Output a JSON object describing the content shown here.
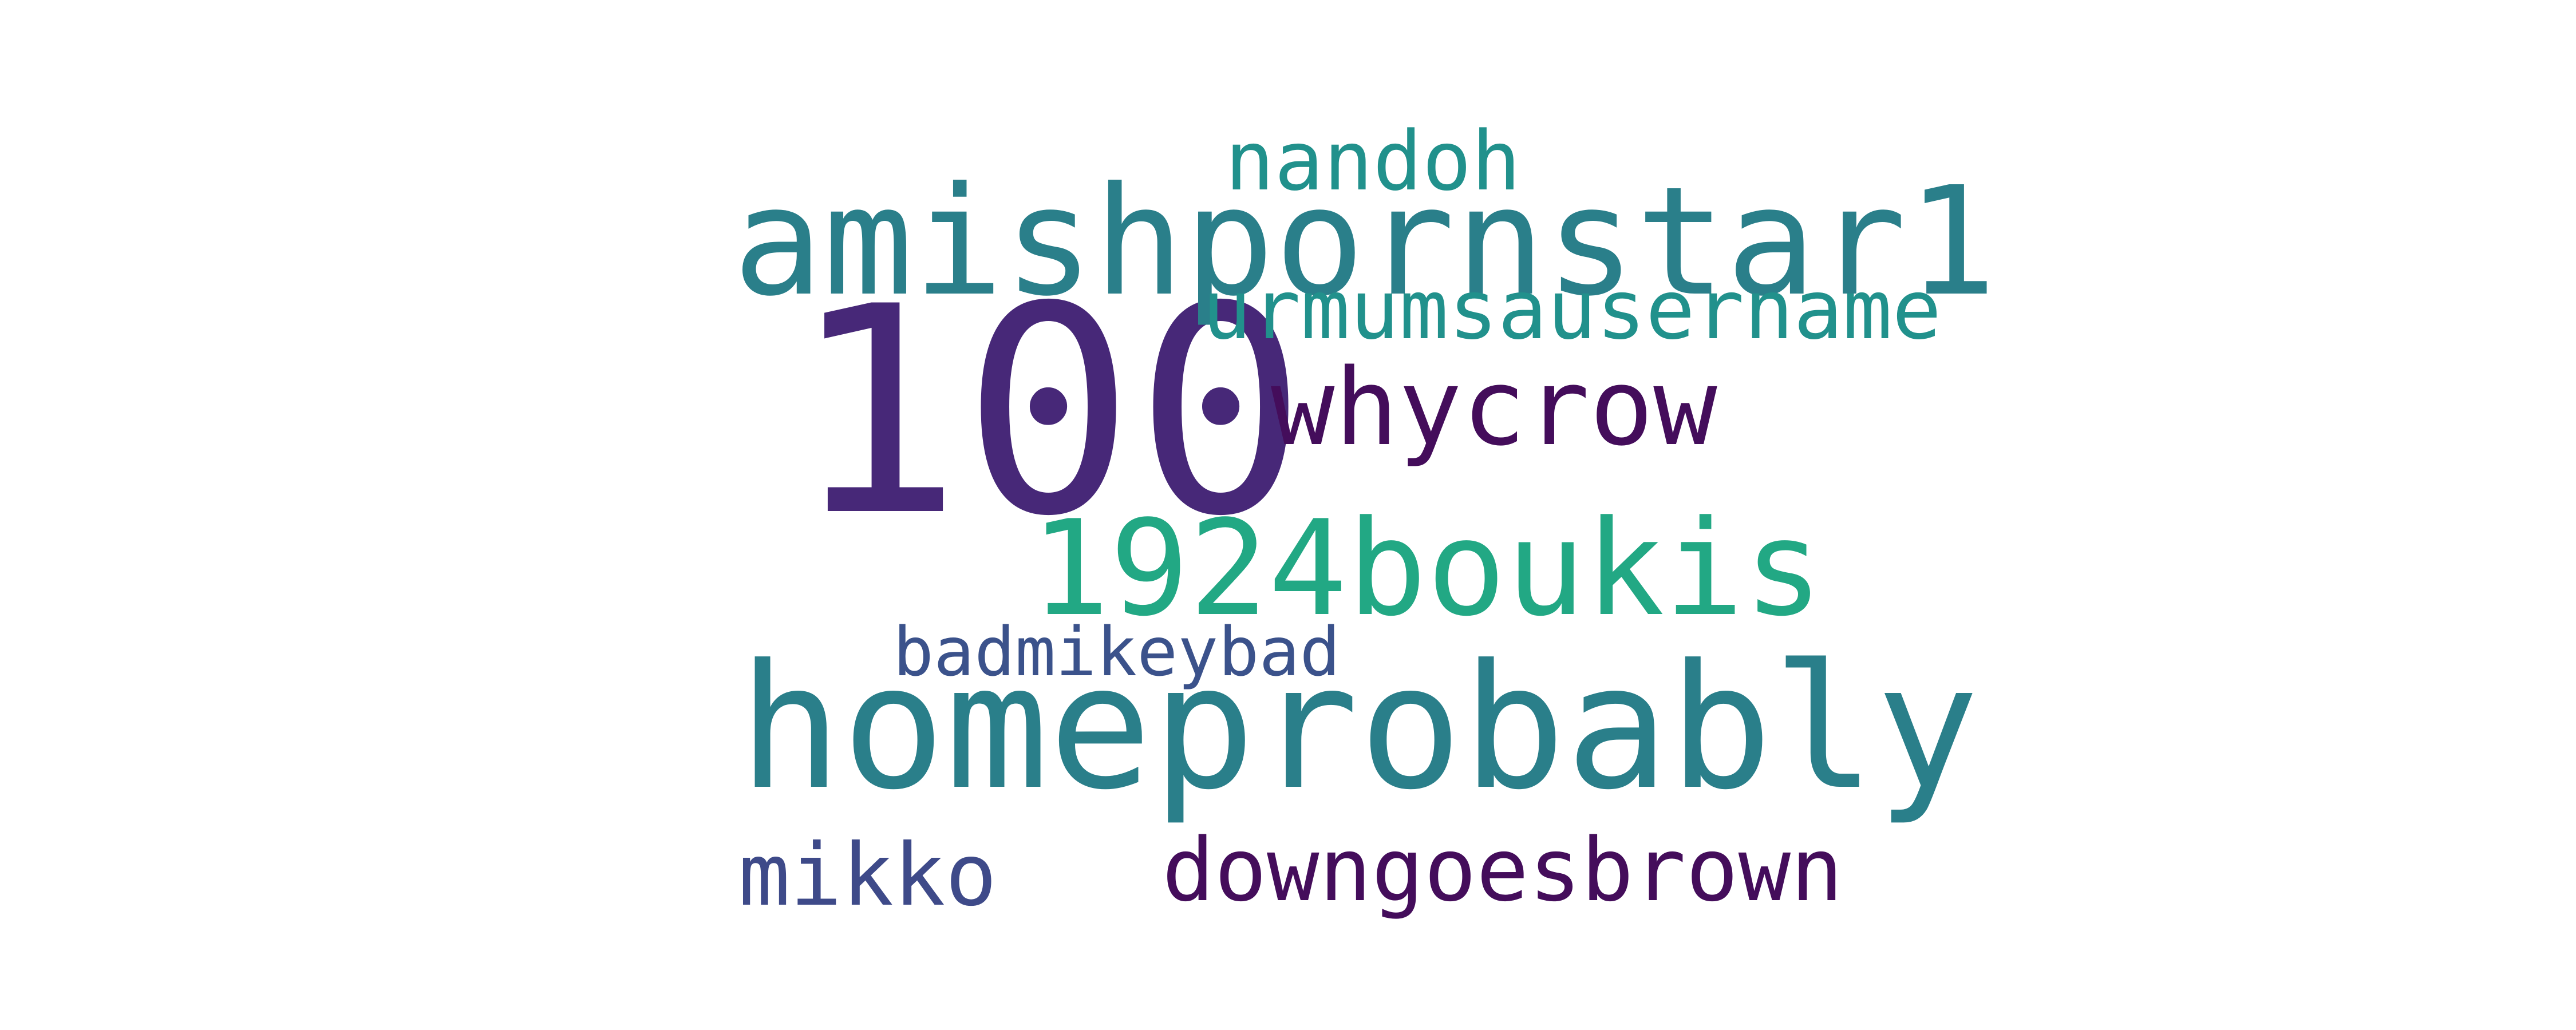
{
  "words": [
    {
      "text": "100",
      "color": "#472878"
    },
    {
      "text": "amishpornstar1",
      "color": "#2a7f8a"
    },
    {
      "text": "homeprobably",
      "color": "#2a7f8a"
    },
    {
      "text": "1924boukis",
      "color": "#22a884"
    },
    {
      "text": "whycrow",
      "color": "#440d5b"
    },
    {
      "text": "urmumsausername",
      "color": "#21918c"
    },
    {
      "text": "downgoesbrown",
      "color": "#440d5b"
    },
    {
      "text": "nandoh",
      "color": "#21918c"
    },
    {
      "text": "badmikeybad",
      "color": "#3b528b"
    },
    {
      "text": "mikko",
      "color": "#3e4a89"
    }
  ]
}
